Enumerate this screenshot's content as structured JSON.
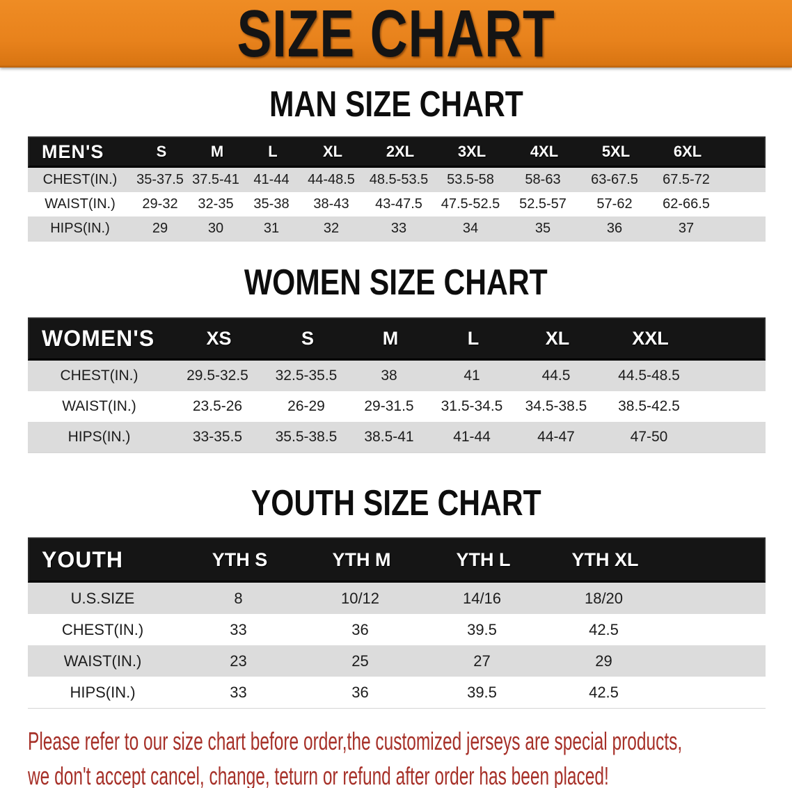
{
  "banner": {
    "title": "SIZE CHART",
    "bg_color": "#e8821c",
    "text_color": "#141414"
  },
  "colors": {
    "header_bar_bg": "#151515",
    "header_bar_text": "#ffffff",
    "row_stripe": "#dcdcdc",
    "footer_text": "#a63028"
  },
  "sections": [
    {
      "title": "MAN SIZE CHART",
      "table": {
        "header_label": "MEN'S",
        "columns": [
          "S",
          "M",
          "L",
          "XL",
          "2XL",
          "3XL",
          "4XL",
          "5XL",
          "6XL"
        ],
        "rows": [
          {
            "label": "CHEST(IN.)",
            "values": [
              "35-37.5",
              "37.5-41",
              "41-44",
              "44-48.5",
              "48.5-53.5",
              "53.5-58",
              "58-63",
              "63-67.5",
              "67.5-72"
            ]
          },
          {
            "label": "WAIST(IN.)",
            "values": [
              "29-32",
              "32-35",
              "35-38",
              "38-43",
              "43-47.5",
              "47.5-52.5",
              "52.5-57",
              "57-62",
              "62-66.5"
            ]
          },
          {
            "label": "HIPS(IN.)",
            "values": [
              "29",
              "30",
              "31",
              "32",
              "33",
              "34",
              "35",
              "36",
              "37"
            ]
          }
        ]
      }
    },
    {
      "title": "WOMEN SIZE CHART",
      "table": {
        "header_label": "WOMEN'S",
        "columns": [
          "XS",
          "S",
          "M",
          "L",
          "XL",
          "XXL"
        ],
        "rows": [
          {
            "label": "CHEST(IN.)",
            "values": [
              "29.5-32.5",
              "32.5-35.5",
              "38",
              "41",
              "44.5",
              "44.5-48.5"
            ]
          },
          {
            "label": "WAIST(IN.)",
            "values": [
              "23.5-26",
              "26-29",
              "29-31.5",
              "31.5-34.5",
              "34.5-38.5",
              "38.5-42.5"
            ]
          },
          {
            "label": "HIPS(IN.)",
            "values": [
              "33-35.5",
              "35.5-38.5",
              "38.5-41",
              "41-44",
              "44-47",
              "47-50"
            ]
          }
        ]
      }
    },
    {
      "title": "YOUTH SIZE CHART",
      "table": {
        "header_label": "YOUTH",
        "columns": [
          "YTH S",
          "YTH M",
          "YTH L",
          "YTH XL"
        ],
        "rows": [
          {
            "label": "U.S.SIZE",
            "values": [
              "8",
              "10/12",
              "14/16",
              "18/20"
            ]
          },
          {
            "label": "CHEST(IN.)",
            "values": [
              "33",
              "36",
              "39.5",
              "42.5"
            ]
          },
          {
            "label": "WAIST(IN.)",
            "values": [
              "23",
              "25",
              "27",
              "29"
            ]
          },
          {
            "label": "HIPS(IN.)",
            "values": [
              "33",
              "36",
              "39.5",
              "42.5"
            ]
          }
        ]
      }
    }
  ],
  "footer_note": {
    "line1": "Please refer to our size chart before order,the customized jerseys are special products,",
    "line2": "we don't accept cancel, change, teturn or refund after order has been placed!"
  },
  "chart_data": [
    {
      "type": "table",
      "title": "MAN SIZE CHART",
      "columns": [
        "MEN'S",
        "S",
        "M",
        "L",
        "XL",
        "2XL",
        "3XL",
        "4XL",
        "5XL",
        "6XL"
      ],
      "rows": [
        [
          "CHEST(IN.)",
          "35-37.5",
          "37.5-41",
          "41-44",
          "44-48.5",
          "48.5-53.5",
          "53.5-58",
          "58-63",
          "63-67.5",
          "67.5-72"
        ],
        [
          "WAIST(IN.)",
          "29-32",
          "32-35",
          "35-38",
          "38-43",
          "43-47.5",
          "47.5-52.5",
          "52.5-57",
          "57-62",
          "62-66.5"
        ],
        [
          "HIPS(IN.)",
          "29",
          "30",
          "31",
          "32",
          "33",
          "34",
          "35",
          "36",
          "37"
        ]
      ]
    },
    {
      "type": "table",
      "title": "WOMEN SIZE CHART",
      "columns": [
        "WOMEN'S",
        "XS",
        "S",
        "M",
        "L",
        "XL",
        "XXL"
      ],
      "rows": [
        [
          "CHEST(IN.)",
          "29.5-32.5",
          "32.5-35.5",
          "38",
          "41",
          "44.5",
          "44.5-48.5"
        ],
        [
          "WAIST(IN.)",
          "23.5-26",
          "26-29",
          "29-31.5",
          "31.5-34.5",
          "34.5-38.5",
          "38.5-42.5"
        ],
        [
          "HIPS(IN.)",
          "33-35.5",
          "35.5-38.5",
          "38.5-41",
          "41-44",
          "44-47",
          "47-50"
        ]
      ]
    },
    {
      "type": "table",
      "title": "YOUTH SIZE CHART",
      "columns": [
        "YOUTH",
        "YTH S",
        "YTH M",
        "YTH L",
        "YTH XL"
      ],
      "rows": [
        [
          "U.S.SIZE",
          "8",
          "10/12",
          "14/16",
          "18/20"
        ],
        [
          "CHEST(IN.)",
          "33",
          "36",
          "39.5",
          "42.5"
        ],
        [
          "WAIST(IN.)",
          "23",
          "25",
          "27",
          "29"
        ],
        [
          "HIPS(IN.)",
          "33",
          "36",
          "39.5",
          "42.5"
        ]
      ]
    }
  ]
}
